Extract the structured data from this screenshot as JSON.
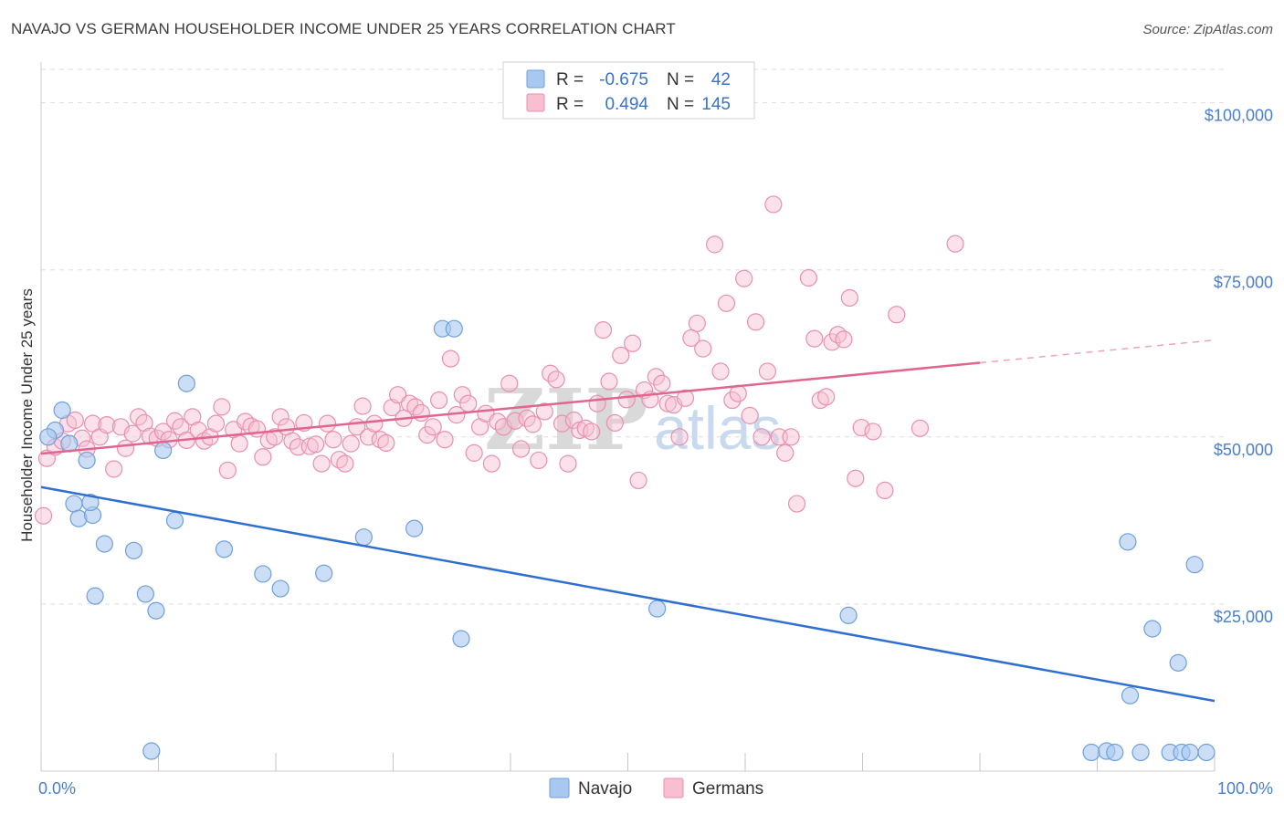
{
  "title": "NAVAJO VS GERMAN HOUSEHOLDER INCOME UNDER 25 YEARS CORRELATION CHART",
  "source": "Source: ZipAtlas.com",
  "watermark": {
    "part1": "ZIP",
    "part2": "atlas"
  },
  "colors": {
    "navajo_fill": "#a9c8f0",
    "navajo_stroke": "#6f9fdc",
    "navajo_line": "#2f6fd0",
    "german_fill": "#f7bfd0",
    "german_stroke": "#e98fae",
    "german_line": "#e06690",
    "axis_text": "#4a7fd0",
    "grid": "#dddddd"
  },
  "legend": {
    "r_label": "R =",
    "n_label": "N =",
    "rows": [
      {
        "r": "-0.675",
        "n": "42"
      },
      {
        "r": "0.494",
        "n": "145"
      }
    ]
  },
  "chart_data": {
    "type": "scatter",
    "xlabel": "",
    "ylabel": "Householder Income Under 25 years",
    "xlim": [
      0,
      100
    ],
    "ylim": [
      0,
      105000
    ],
    "x_tick_labels": [
      "0.0%",
      "100.0%"
    ],
    "y_ticks": [
      25000,
      50000,
      75000,
      100000
    ],
    "y_tick_labels": [
      "$25,000",
      "$50,000",
      "$75,000",
      "$100,000"
    ],
    "grid": true,
    "legend_position": "top-center",
    "series": [
      {
        "name": "Navajo",
        "trend": {
          "x0": 0,
          "y0": 42500,
          "x1": 100,
          "y1": 10500,
          "dashed_from": null
        },
        "points": [
          [
            1.2,
            51000
          ],
          [
            0.6,
            50000
          ],
          [
            1.8,
            54000
          ],
          [
            2.4,
            49000
          ],
          [
            2.8,
            40000
          ],
          [
            3.2,
            37800
          ],
          [
            3.9,
            46500
          ],
          [
            4.4,
            38300
          ],
          [
            4.2,
            40200
          ],
          [
            4.6,
            26200
          ],
          [
            5.4,
            34000
          ],
          [
            7.9,
            33000
          ],
          [
            8.9,
            26500
          ],
          [
            9.8,
            24000
          ],
          [
            9.4,
            3000
          ],
          [
            10.4,
            48000
          ],
          [
            11.4,
            37500
          ],
          [
            12.4,
            58000
          ],
          [
            15.6,
            33200
          ],
          [
            18.9,
            29500
          ],
          [
            20.4,
            27300
          ],
          [
            24.1,
            29600
          ],
          [
            27.5,
            35000
          ],
          [
            31.8,
            36300
          ],
          [
            34.2,
            66200
          ],
          [
            35.2,
            66200
          ],
          [
            35.8,
            19800
          ],
          [
            52.5,
            24300
          ],
          [
            68.8,
            23300
          ],
          [
            89.5,
            2800
          ],
          [
            90.8,
            3000
          ],
          [
            91.5,
            2800
          ],
          [
            92.6,
            34300
          ],
          [
            92.8,
            11300
          ],
          [
            93.7,
            2800
          ],
          [
            94.7,
            21300
          ],
          [
            96.2,
            2800
          ],
          [
            96.9,
            16200
          ],
          [
            97.2,
            2800
          ],
          [
            97.9,
            2800
          ],
          [
            98.3,
            30900
          ],
          [
            99.3,
            2800
          ]
        ]
      },
      {
        "name": "Germans",
        "trend": {
          "x0": 0,
          "y0": 47500,
          "x1": 100,
          "y1": 64500,
          "dashed_from": 80
        },
        "points": [
          [
            0.2,
            38200
          ],
          [
            0.5,
            46800
          ],
          [
            1.2,
            48500
          ],
          [
            1.8,
            49400
          ],
          [
            2.3,
            52000
          ],
          [
            2.9,
            52500
          ],
          [
            3.5,
            49800
          ],
          [
            3.9,
            48200
          ],
          [
            4.4,
            52000
          ],
          [
            5.0,
            50000
          ],
          [
            5.6,
            51800
          ],
          [
            6.2,
            45200
          ],
          [
            6.8,
            51500
          ],
          [
            7.2,
            48300
          ],
          [
            7.8,
            50500
          ],
          [
            8.3,
            53000
          ],
          [
            8.8,
            52100
          ],
          [
            9.3,
            50100
          ],
          [
            9.9,
            49800
          ],
          [
            10.4,
            50800
          ],
          [
            10.9,
            49600
          ],
          [
            11.4,
            52400
          ],
          [
            11.9,
            51500
          ],
          [
            12.4,
            49500
          ],
          [
            12.9,
            53000
          ],
          [
            13.4,
            51000
          ],
          [
            13.9,
            49400
          ],
          [
            14.4,
            50000
          ],
          [
            14.9,
            52000
          ],
          [
            15.4,
            54500
          ],
          [
            15.9,
            45000
          ],
          [
            16.4,
            51100
          ],
          [
            16.9,
            49000
          ],
          [
            17.4,
            52300
          ],
          [
            17.9,
            51600
          ],
          [
            18.4,
            51200
          ],
          [
            18.9,
            47000
          ],
          [
            19.4,
            49500
          ],
          [
            19.9,
            50000
          ],
          [
            20.4,
            53000
          ],
          [
            20.9,
            51500
          ],
          [
            21.4,
            49400
          ],
          [
            21.9,
            48500
          ],
          [
            22.4,
            52100
          ],
          [
            22.9,
            48600
          ],
          [
            23.4,
            48900
          ],
          [
            23.9,
            46000
          ],
          [
            24.4,
            52000
          ],
          [
            24.9,
            49600
          ],
          [
            25.4,
            46600
          ],
          [
            25.9,
            46000
          ],
          [
            26.4,
            49000
          ],
          [
            26.9,
            51500
          ],
          [
            27.4,
            54600
          ],
          [
            27.9,
            50000
          ],
          [
            28.4,
            52000
          ],
          [
            28.9,
            49600
          ],
          [
            29.4,
            49100
          ],
          [
            29.9,
            54400
          ],
          [
            30.4,
            56300
          ],
          [
            30.9,
            52800
          ],
          [
            31.4,
            55000
          ],
          [
            31.9,
            54500
          ],
          [
            32.4,
            53600
          ],
          [
            32.9,
            50300
          ],
          [
            33.4,
            51500
          ],
          [
            33.9,
            55500
          ],
          [
            34.4,
            49600
          ],
          [
            34.9,
            61700
          ],
          [
            35.4,
            53300
          ],
          [
            35.9,
            56300
          ],
          [
            36.4,
            55000
          ],
          [
            36.9,
            47600
          ],
          [
            37.4,
            51500
          ],
          [
            37.9,
            53500
          ],
          [
            38.4,
            46000
          ],
          [
            38.9,
            52300
          ],
          [
            39.4,
            51500
          ],
          [
            39.9,
            58000
          ],
          [
            40.4,
            52400
          ],
          [
            40.9,
            48200
          ],
          [
            41.4,
            52800
          ],
          [
            41.9,
            51900
          ],
          [
            42.4,
            46500
          ],
          [
            42.9,
            53800
          ],
          [
            43.4,
            59500
          ],
          [
            43.9,
            58600
          ],
          [
            44.4,
            52000
          ],
          [
            44.9,
            46000
          ],
          [
            45.4,
            52500
          ],
          [
            45.9,
            51000
          ],
          [
            46.4,
            51300
          ],
          [
            46.9,
            50800
          ],
          [
            47.4,
            55000
          ],
          [
            47.9,
            66000
          ],
          [
            48.4,
            58300
          ],
          [
            48.9,
            52100
          ],
          [
            49.4,
            62200
          ],
          [
            49.9,
            55600
          ],
          [
            50.4,
            64000
          ],
          [
            50.9,
            43500
          ],
          [
            51.4,
            57000
          ],
          [
            51.9,
            55600
          ],
          [
            52.4,
            59000
          ],
          [
            52.9,
            58000
          ],
          [
            53.4,
            55000
          ],
          [
            53.9,
            54800
          ],
          [
            54.4,
            50000
          ],
          [
            54.9,
            55800
          ],
          [
            55.4,
            64800
          ],
          [
            55.9,
            67000
          ],
          [
            56.4,
            63200
          ],
          [
            57.4,
            78800
          ],
          [
            57.9,
            59800
          ],
          [
            58.4,
            70000
          ],
          [
            58.9,
            55500
          ],
          [
            59.4,
            56500
          ],
          [
            59.9,
            73700
          ],
          [
            60.4,
            53200
          ],
          [
            60.9,
            67200
          ],
          [
            61.4,
            50000
          ],
          [
            61.9,
            59800
          ],
          [
            62.4,
            84800
          ],
          [
            62.9,
            50000
          ],
          [
            63.4,
            47600
          ],
          [
            63.9,
            50000
          ],
          [
            64.4,
            40000
          ],
          [
            65.4,
            73800
          ],
          [
            65.9,
            64700
          ],
          [
            66.4,
            55500
          ],
          [
            66.9,
            56000
          ],
          [
            67.4,
            64200
          ],
          [
            67.9,
            65300
          ],
          [
            68.4,
            64600
          ],
          [
            68.9,
            70800
          ],
          [
            69.4,
            43800
          ],
          [
            69.9,
            51400
          ],
          [
            70.9,
            50800
          ],
          [
            71.9,
            42000
          ],
          [
            72.9,
            68300
          ],
          [
            74.9,
            51300
          ],
          [
            77.9,
            78900
          ]
        ]
      }
    ]
  }
}
